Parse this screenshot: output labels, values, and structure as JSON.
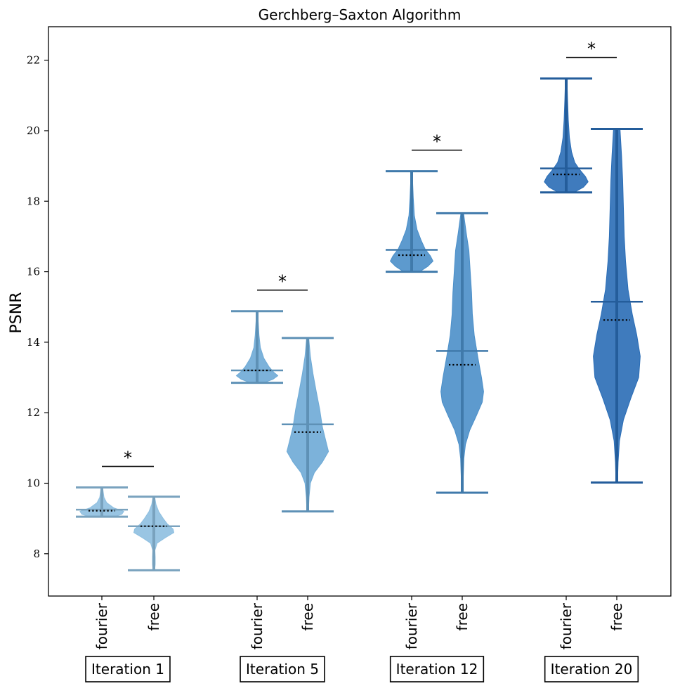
{
  "chart_data": {
    "type": "violin",
    "title": "Gerchberg–Saxton Algorithm",
    "ylabel": "PSNR",
    "xlabel": "",
    "ylim": [
      6.8,
      22.95
    ],
    "yticks": [
      8,
      10,
      12,
      14,
      16,
      18,
      20,
      22
    ],
    "groups": [
      {
        "label": "Iteration 1",
        "significance": "*",
        "color": "#8ebfe0",
        "violins": [
          {
            "label": "fourier",
            "min": 9.05,
            "max": 9.88,
            "mean": 9.25,
            "median": 9.22,
            "profile": [
              [
                9.05,
                0.45
              ],
              [
                9.12,
                0.75
              ],
              [
                9.2,
                0.82
              ],
              [
                9.3,
                0.45
              ],
              [
                9.45,
                0.18
              ],
              [
                9.6,
                0.08
              ],
              [
                9.75,
                0.05
              ],
              [
                9.88,
                0.03
              ]
            ]
          },
          {
            "label": "free",
            "min": 7.53,
            "max": 9.62,
            "mean": 8.78,
            "median": 8.78,
            "profile": [
              [
                7.53,
                0.03
              ],
              [
                7.7,
                0.05
              ],
              [
                7.9,
                0.05
              ],
              [
                8.1,
                0.04
              ],
              [
                8.3,
                0.12
              ],
              [
                8.45,
                0.42
              ],
              [
                8.6,
                0.75
              ],
              [
                8.7,
                0.72
              ],
              [
                8.85,
                0.5
              ],
              [
                9.0,
                0.35
              ],
              [
                9.2,
                0.18
              ],
              [
                9.4,
                0.08
              ],
              [
                9.62,
                0.03
              ]
            ]
          }
        ]
      },
      {
        "label": "Iteration 5",
        "significance": "*",
        "color": "#6eaad6",
        "violins": [
          {
            "label": "fourier",
            "min": 12.85,
            "max": 14.88,
            "mean": 13.2,
            "median": 13.2,
            "profile": [
              [
                12.85,
                0.25
              ],
              [
                12.95,
                0.6
              ],
              [
                13.05,
                0.78
              ],
              [
                13.15,
                0.62
              ],
              [
                13.3,
                0.45
              ],
              [
                13.55,
                0.25
              ],
              [
                13.85,
                0.12
              ],
              [
                14.2,
                0.07
              ],
              [
                14.6,
                0.04
              ],
              [
                14.88,
                0.03
              ]
            ]
          },
          {
            "label": "free",
            "min": 9.2,
            "max": 14.12,
            "mean": 11.67,
            "median": 11.45,
            "profile": [
              [
                9.2,
                0.03
              ],
              [
                9.6,
                0.05
              ],
              [
                10.0,
                0.1
              ],
              [
                10.3,
                0.25
              ],
              [
                10.6,
                0.55
              ],
              [
                10.9,
                0.78
              ],
              [
                11.2,
                0.68
              ],
              [
                11.6,
                0.55
              ],
              [
                12.1,
                0.45
              ],
              [
                12.6,
                0.32
              ],
              [
                13.1,
                0.2
              ],
              [
                13.6,
                0.1
              ],
              [
                14.12,
                0.04
              ]
            ]
          }
        ]
      },
      {
        "label": "Iteration 12",
        "significance": "*",
        "color": "#4b8fc9",
        "violins": [
          {
            "label": "fourier",
            "min": 16.0,
            "max": 18.85,
            "mean": 16.62,
            "median": 16.47,
            "profile": [
              [
                16.0,
                0.3
              ],
              [
                16.15,
                0.6
              ],
              [
                16.3,
                0.8
              ],
              [
                16.45,
                0.7
              ],
              [
                16.65,
                0.5
              ],
              [
                16.9,
                0.35
              ],
              [
                17.2,
                0.2
              ],
              [
                17.6,
                0.1
              ],
              [
                18.1,
                0.06
              ],
              [
                18.5,
                0.04
              ],
              [
                18.85,
                0.03
              ]
            ]
          },
          {
            "label": "free",
            "min": 9.73,
            "max": 17.66,
            "mean": 13.75,
            "median": 13.36,
            "profile": [
              [
                9.73,
                0.03
              ],
              [
                10.2,
                0.04
              ],
              [
                10.7,
                0.06
              ],
              [
                11.1,
                0.12
              ],
              [
                11.5,
                0.28
              ],
              [
                11.9,
                0.52
              ],
              [
                12.3,
                0.75
              ],
              [
                12.6,
                0.8
              ],
              [
                13.0,
                0.72
              ],
              [
                13.6,
                0.58
              ],
              [
                14.2,
                0.45
              ],
              [
                14.8,
                0.38
              ],
              [
                15.4,
                0.35
              ],
              [
                16.0,
                0.3
              ],
              [
                16.6,
                0.25
              ],
              [
                17.1,
                0.15
              ],
              [
                17.66,
                0.05
              ]
            ]
          }
        ]
      },
      {
        "label": "Iteration 20",
        "significance": "*",
        "color": "#2a6db6",
        "violins": [
          {
            "label": "fourier",
            "min": 18.25,
            "max": 21.48,
            "mean": 18.93,
            "median": 18.76,
            "profile": [
              [
                18.25,
                0.3
              ],
              [
                18.4,
                0.65
              ],
              [
                18.55,
                0.82
              ],
              [
                18.7,
                0.72
              ],
              [
                18.9,
                0.5
              ],
              [
                19.1,
                0.32
              ],
              [
                19.4,
                0.2
              ],
              [
                19.8,
                0.12
              ],
              [
                20.3,
                0.08
              ],
              [
                20.9,
                0.05
              ],
              [
                21.48,
                0.03
              ]
            ]
          },
          {
            "label": "free",
            "min": 10.02,
            "max": 20.05,
            "mean": 15.15,
            "median": 14.63,
            "profile": [
              [
                10.02,
                0.03
              ],
              [
                10.6,
                0.05
              ],
              [
                11.2,
                0.1
              ],
              [
                11.8,
                0.25
              ],
              [
                12.4,
                0.52
              ],
              [
                13.0,
                0.82
              ],
              [
                13.6,
                0.88
              ],
              [
                14.2,
                0.75
              ],
              [
                14.8,
                0.58
              ],
              [
                15.5,
                0.42
              ],
              [
                16.3,
                0.33
              ],
              [
                17.0,
                0.28
              ],
              [
                17.8,
                0.25
              ],
              [
                18.6,
                0.22
              ],
              [
                19.3,
                0.18
              ],
              [
                20.05,
                0.12
              ]
            ]
          }
        ]
      }
    ]
  }
}
